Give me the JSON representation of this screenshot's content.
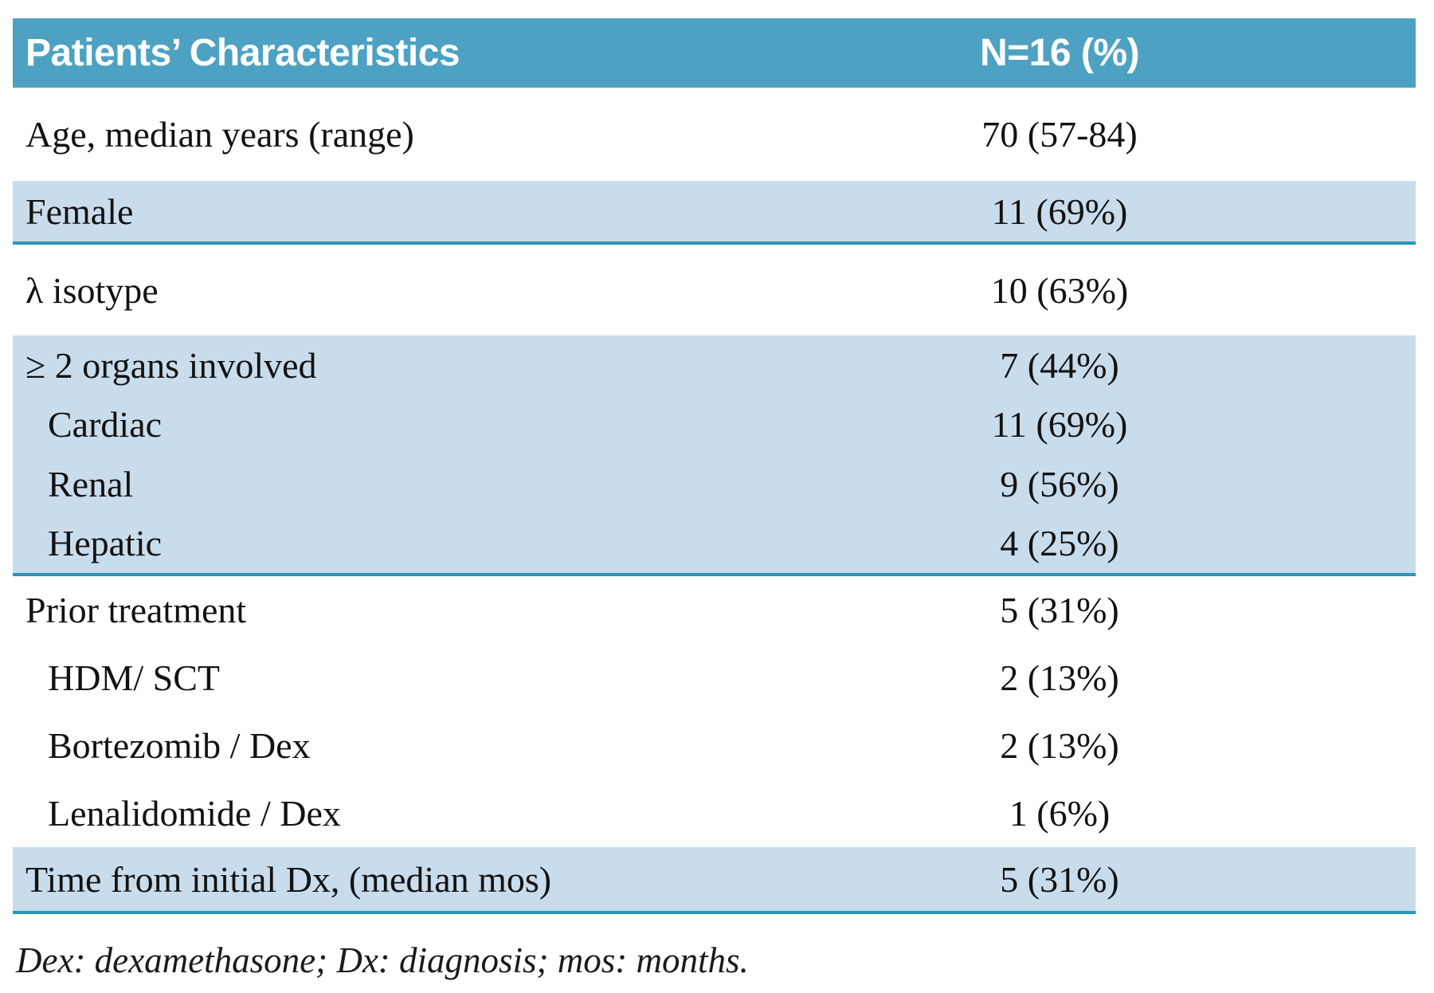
{
  "table": {
    "header": {
      "col1": "Patients’ Characteristics",
      "col2": "N=16 (%)"
    },
    "sections": [
      {
        "rows": [
          {
            "label": "Age, median years (range)",
            "value": "70 (57-84)"
          }
        ]
      },
      {
        "rows": [
          {
            "label": "Female",
            "value": "11 (69%)"
          }
        ]
      },
      {
        "rows": [
          {
            "label": "λ isotype",
            "value": "10 (63%)"
          }
        ]
      },
      {
        "rows": [
          {
            "label": "≥ 2 organs involved",
            "value": "7 (44%)"
          },
          {
            "label": "Cardiac",
            "value": "11 (69%)"
          },
          {
            "label": "Renal",
            "value": "9 (56%)"
          },
          {
            "label": "Hepatic",
            "value": "4 (25%)"
          }
        ]
      },
      {
        "rows": [
          {
            "label": "Prior treatment",
            "value": "5 (31%)"
          },
          {
            "label": "HDM/ SCT",
            "value": "2 (13%)"
          },
          {
            "label": "Bortezomib / Dex",
            "value": "2 (13%)"
          },
          {
            "label": "Lenalidomide / Dex",
            "value": "1 (6%)"
          }
        ]
      },
      {
        "rows": [
          {
            "label": "Time from initial Dx, (median mos)",
            "value": "5 (31%)"
          }
        ]
      }
    ],
    "footnote": "Dex: dexamethasone; Dx: diagnosis; mos: months."
  },
  "colors": {
    "header_bg": "#4da2c3",
    "band_bg": "#c8dcec",
    "rule": "#2a96b8",
    "header_text": "#ffffff",
    "body_text": "#121212"
  }
}
